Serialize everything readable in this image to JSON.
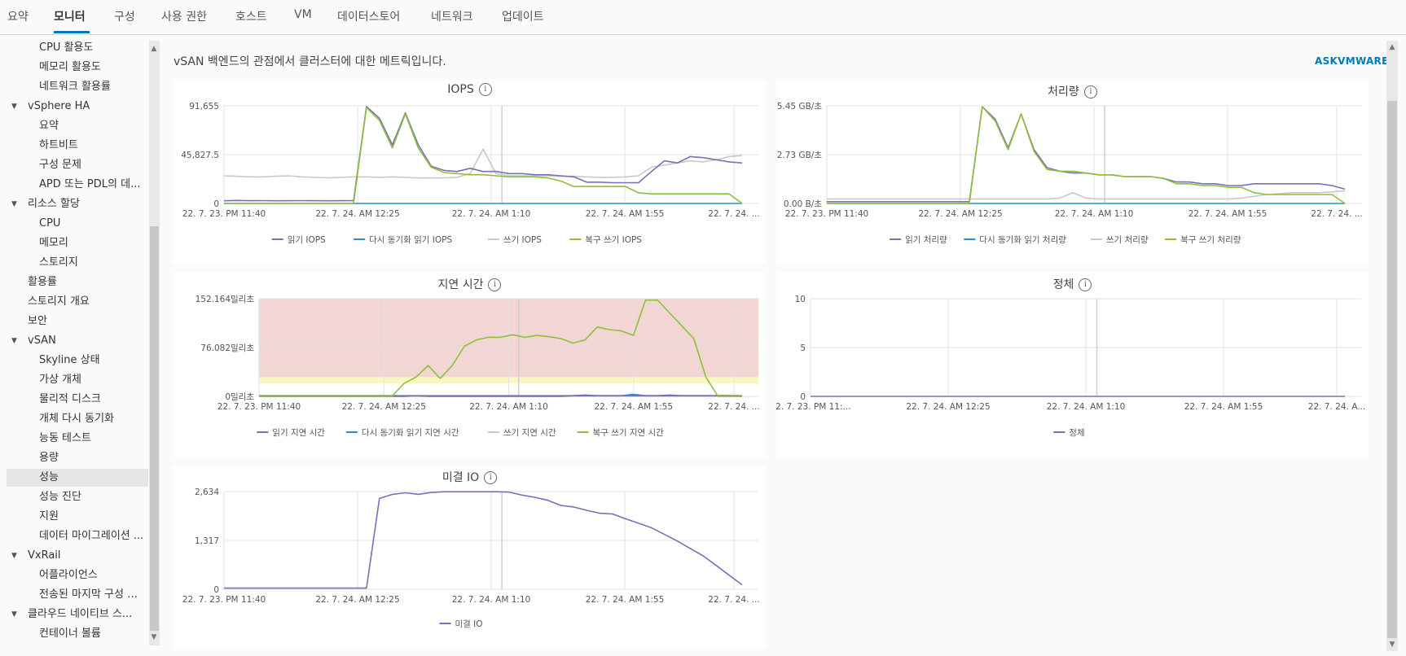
{
  "tabs": [
    {
      "label": "요약"
    },
    {
      "label": "모니터"
    },
    {
      "label": "구성"
    },
    {
      "label": "사용 권한"
    },
    {
      "label": "호스트"
    },
    {
      "label": "VM"
    },
    {
      "label": "데이터스토어"
    },
    {
      "label": "네트워크"
    },
    {
      "label": "업데이트"
    }
  ],
  "active_tab": "모니터",
  "sidebar": {
    "items": [
      {
        "label": "CPU 활용도"
      },
      {
        "label": "메모리 활용도"
      },
      {
        "label": "네트워크 활용률"
      },
      {
        "label": "vSphere HA"
      },
      {
        "label": "요약"
      },
      {
        "label": "하트비트"
      },
      {
        "label": "구성 문제"
      },
      {
        "label": "APD 또는 PDL의 데..."
      },
      {
        "label": "리소스 할당"
      },
      {
        "label": "CPU"
      },
      {
        "label": "메모리"
      },
      {
        "label": "스토리지"
      },
      {
        "label": "활용률"
      },
      {
        "label": "스토리지 개요"
      },
      {
        "label": "보안"
      },
      {
        "label": "vSAN"
      },
      {
        "label": "Skyline 상태"
      },
      {
        "label": "가상 개체"
      },
      {
        "label": "물리적 디스크"
      },
      {
        "label": "개체 다시 동기화"
      },
      {
        "label": "능동 테스트"
      },
      {
        "label": "용량"
      },
      {
        "label": "성능"
      },
      {
        "label": "성능 진단"
      },
      {
        "label": "지원"
      },
      {
        "label": "데이터 마이그레이션 ..."
      },
      {
        "label": "VxRail"
      },
      {
        "label": "어플라이언스"
      },
      {
        "label": "전송된 마지막 구성 데..."
      },
      {
        "label": "클라우드 네이티브 스..."
      },
      {
        "label": "컨테이너 볼륨"
      }
    ],
    "selected": "성능"
  },
  "main": {
    "description": "vSAN 백엔드의 관점에서 클러스터에 대한 메트릭입니다.",
    "askvmware": "ASKVMWARE"
  },
  "colors": {
    "read": "#7b6fb5",
    "resync": "#2a8fcf",
    "write": "#c8c8c8",
    "recovery": "#8ebf3b",
    "danger_zone": "#f2d6d3",
    "warning_zone": "#fbf7c2",
    "accent": "#0079b8"
  },
  "chart_data": [
    {
      "type": "line",
      "title": "IOPS",
      "yticks": [
        "91,655",
        "45,827.5",
        "0"
      ],
      "ylim": [
        0,
        91655
      ],
      "xticks": [
        "22. 7. 23. PM 11:40",
        "22. 7. 24. AM 12:25",
        "22. 7. 24. AM 1:10",
        "22. 7. 24. AM 1:55",
        "22. 7. 24. ..."
      ],
      "legend": [
        "읽기 IOPS",
        "다시 동기화 읽기 IOPS",
        "쓰기 IOPS",
        "복구 쓰기 IOPS"
      ],
      "series": [
        {
          "name": "읽기 IOPS",
          "values": [
            2500,
            2800,
            2600,
            2700,
            2500,
            2600,
            2700,
            2600,
            2500,
            2600,
            2700,
            91000,
            80000,
            55000,
            85000,
            55000,
            35000,
            31000,
            30000,
            33000,
            30000,
            30000,
            28000,
            28000,
            27000,
            27000,
            26000,
            25000,
            20000,
            20000,
            19500,
            19500,
            19500,
            30000,
            40000,
            38000,
            44000,
            43000,
            41000,
            39000,
            38000
          ]
        },
        {
          "name": "다시 동기화 읽기 IOPS",
          "values": [
            0,
            0,
            0,
            0,
            0,
            0,
            0,
            0,
            0,
            0,
            0,
            0,
            0,
            0,
            0,
            0,
            0,
            0,
            0,
            0,
            0,
            0,
            0,
            0,
            0,
            0,
            0,
            0,
            0,
            0,
            0,
            0,
            0,
            0,
            0,
            0,
            0,
            0,
            0,
            0,
            0
          ]
        },
        {
          "name": "쓰기 IOPS",
          "values": [
            26000,
            25500,
            25000,
            25000,
            25500,
            26000,
            25000,
            24500,
            24000,
            24500,
            25000,
            25000,
            24500,
            25000,
            24500,
            24000,
            24000,
            24000,
            24500,
            28000,
            51000,
            28000,
            26000,
            26000,
            26000,
            26000,
            25500,
            25500,
            25000,
            24500,
            24500,
            25000,
            26000,
            34000,
            36000,
            38000,
            40000,
            39000,
            41000,
            44000,
            45000
          ]
        },
        {
          "name": "복구 쓰기 IOPS",
          "values": [
            0,
            0,
            0,
            0,
            0,
            0,
            0,
            0,
            0,
            0,
            0,
            90000,
            78000,
            52000,
            84000,
            52000,
            34000,
            29000,
            28000,
            27000,
            27000,
            26000,
            25000,
            25000,
            25000,
            24000,
            21000,
            16000,
            16000,
            16000,
            16000,
            16000,
            10000,
            9000,
            9000,
            9000,
            9000,
            9000,
            9000,
            9000,
            0
          ]
        }
      ]
    },
    {
      "type": "line",
      "title": "처리량",
      "yticks": [
        "5.45 GB/초",
        "2.73 GB/초",
        "0.00 B/초"
      ],
      "ylim": [
        0,
        5.45
      ],
      "xticks": [
        "22. 7. 23. PM 11:40",
        "22. 7. 24. AM 12:25",
        "22. 7. 24. AM 1:10",
        "22. 7. 24. AM 1:55",
        "22. 7. 24. ..."
      ],
      "legend": [
        "읽기 처리량",
        "다시 동기화 읽기 처리량",
        "쓰기 처리량",
        "복구 쓰기 처리량"
      ],
      "series": [
        {
          "name": "읽기 처리량",
          "values": [
            0.1,
            0.1,
            0.1,
            0.1,
            0.1,
            0.1,
            0.1,
            0.1,
            0.1,
            0.1,
            0.1,
            0.1,
            5.4,
            4.7,
            3.1,
            5.0,
            3.0,
            2.0,
            1.8,
            1.7,
            1.7,
            1.6,
            1.6,
            1.5,
            1.5,
            1.5,
            1.4,
            1.2,
            1.2,
            1.1,
            1.1,
            1.0,
            1.0,
            1.1,
            1.1,
            1.1,
            1.1,
            1.1,
            1.1,
            1.0,
            0.8
          ]
        },
        {
          "name": "다시 동기화 읽기 처리량",
          "values": [
            0,
            0,
            0,
            0,
            0,
            0,
            0,
            0,
            0,
            0,
            0,
            0,
            0,
            0,
            0,
            0,
            0,
            0,
            0,
            0,
            0,
            0,
            0,
            0,
            0,
            0,
            0,
            0,
            0,
            0,
            0,
            0,
            0,
            0,
            0,
            0,
            0,
            0,
            0,
            0,
            0
          ]
        },
        {
          "name": "쓰기 처리량",
          "values": [
            0.25,
            0.25,
            0.25,
            0.25,
            0.25,
            0.25,
            0.25,
            0.25,
            0.25,
            0.25,
            0.25,
            0.25,
            0.25,
            0.25,
            0.25,
            0.25,
            0.25,
            0.25,
            0.3,
            0.6,
            0.3,
            0.25,
            0.25,
            0.25,
            0.25,
            0.25,
            0.25,
            0.25,
            0.25,
            0.25,
            0.25,
            0.25,
            0.3,
            0.4,
            0.5,
            0.55,
            0.6,
            0.6,
            0.6,
            0.65,
            0.7
          ]
        },
        {
          "name": "복구 쓰기 처리량",
          "values": [
            0,
            0,
            0,
            0,
            0,
            0,
            0,
            0,
            0,
            0,
            0,
            0,
            5.4,
            4.6,
            3.0,
            5.0,
            2.9,
            1.9,
            1.8,
            1.8,
            1.7,
            1.6,
            1.6,
            1.5,
            1.5,
            1.5,
            1.4,
            1.1,
            1.1,
            1.0,
            1.0,
            0.9,
            0.9,
            0.6,
            0.5,
            0.5,
            0.5,
            0.5,
            0.5,
            0.5,
            0.0
          ]
        }
      ]
    },
    {
      "type": "line",
      "title": "지연 시간",
      "yticks": [
        "152.164밀리초",
        "76.082밀리초",
        "0밀리초"
      ],
      "ylim": [
        0,
        152.164
      ],
      "xticks": [
        "22. 7. 23. PM 11:40",
        "22. 7. 24. AM 12:25",
        "22. 7. 24. AM 1:10",
        "22. 7. 24. AM 1:55",
        "22. 7. 24. ..."
      ],
      "legend": [
        "읽기 지연 시간",
        "다시 동기화 읽기 지연 시간",
        "쓰기 지연 시간",
        "복구 쓰기 지연 시간"
      ],
      "series": [
        {
          "name": "읽기 지연 시간",
          "values": [
            1,
            1,
            1,
            1,
            1,
            1,
            1,
            1,
            1,
            1,
            1,
            1,
            1,
            1,
            1,
            1,
            1,
            1,
            1,
            1,
            1,
            1,
            1,
            1,
            1,
            1,
            1,
            1,
            1,
            1,
            1,
            1,
            1,
            1,
            1,
            1,
            1,
            1,
            1,
            1,
            1
          ]
        },
        {
          "name": "다시 동기화 읽기 지연 시간",
          "values": [
            0,
            0,
            0,
            0,
            0,
            0,
            0,
            0,
            0,
            0,
            0,
            0,
            0,
            1,
            0,
            0,
            0,
            0,
            0,
            0,
            0,
            0,
            0,
            0,
            0,
            0,
            1,
            2,
            1,
            1,
            1,
            3,
            1,
            1,
            2,
            1,
            1,
            1,
            1,
            1,
            0
          ]
        },
        {
          "name": "쓰기 지연 시간",
          "values": [
            0,
            0,
            0,
            0,
            0,
            0,
            0,
            0,
            0,
            0,
            0,
            0,
            0,
            0,
            0,
            0,
            0,
            0,
            0,
            0,
            0,
            0,
            0,
            0,
            0,
            0,
            0,
            0,
            0,
            0,
            0,
            0,
            0,
            0,
            0,
            0,
            0,
            0,
            0,
            0,
            0
          ]
        },
        {
          "name": "복구 쓰기 지연 시간",
          "values": [
            0,
            0,
            0,
            0,
            0,
            0,
            0,
            0,
            0,
            0,
            0,
            0,
            20,
            30,
            48,
            28,
            48,
            78,
            88,
            92,
            92,
            96,
            92,
            95,
            93,
            90,
            83,
            88,
            108,
            104,
            102,
            95,
            150,
            150,
            130,
            110,
            90,
            30,
            0,
            0,
            0
          ]
        }
      ],
      "zones": [
        {
          "from": 0,
          "to": 20,
          "color": "none"
        },
        {
          "from": 20,
          "to": 30,
          "color": "warning"
        },
        {
          "from": 30,
          "to": 152.164,
          "color": "danger"
        }
      ]
    },
    {
      "type": "line",
      "title": "정체",
      "yticks": [
        "10",
        "5",
        "0"
      ],
      "ylim": [
        0,
        10
      ],
      "xticks": [
        "22. 7. 23. PM 11:...",
        "22. 7. 24. AM 12:25",
        "22. 7. 24. AM 1:10",
        "22. 7. 24. AM 1:55",
        "22. 7. 24. A..."
      ],
      "legend": [
        "정체"
      ],
      "series": [
        {
          "name": "정체",
          "values": [
            0,
            0,
            0,
            0,
            0,
            0,
            0,
            0,
            0,
            0,
            0,
            0,
            0,
            0,
            0,
            0,
            0,
            0,
            0,
            0,
            0,
            0,
            0,
            0,
            0,
            0,
            0,
            0,
            0,
            0,
            0,
            0,
            0,
            0,
            0,
            0,
            0,
            0,
            0,
            0,
            0
          ]
        }
      ]
    },
    {
      "type": "line",
      "title": "미결 IO",
      "yticks": [
        "2,634",
        "1,317",
        "0"
      ],
      "ylim": [
        0,
        2634
      ],
      "xticks": [
        "22. 7. 23. PM 11:40",
        "22. 7. 24. AM 12:25",
        "22. 7. 24. AM 1:10",
        "22. 7. 24. AM 1:55",
        "22. 7. 24. ..."
      ],
      "legend": [
        "미결 IO"
      ],
      "series": [
        {
          "name": "미결 IO",
          "values": [
            30,
            30,
            30,
            30,
            30,
            30,
            30,
            30,
            30,
            30,
            30,
            30,
            2450,
            2560,
            2600,
            2560,
            2610,
            2630,
            2630,
            2630,
            2630,
            2630,
            2620,
            2540,
            2480,
            2400,
            2260,
            2220,
            2130,
            2050,
            2030,
            1900,
            1780,
            1660,
            1480,
            1300,
            1100,
            900,
            640,
            380,
            120
          ]
        }
      ]
    }
  ]
}
